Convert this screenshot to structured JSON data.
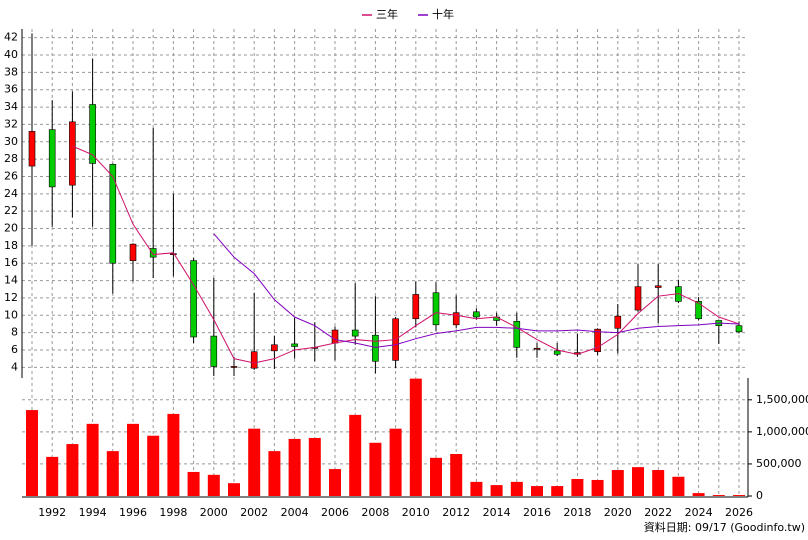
{
  "chart_data": {
    "type": "candlestick",
    "categories": [
      null,
      "1992",
      null,
      "1994",
      null,
      "1996",
      null,
      "1998",
      null,
      "2000",
      null,
      "2002",
      null,
      "2004",
      null,
      "2006",
      null,
      "2008",
      null,
      "2010",
      null,
      "2012",
      null,
      "2014",
      null,
      "2016",
      null,
      "2018",
      null,
      "2020",
      null,
      "2022",
      null,
      "2024",
      null,
      "2026"
    ],
    "open": [
      27.2,
      31.4,
      25.0,
      34.3,
      27.4,
      16.3,
      17.7,
      17.0,
      16.3,
      7.6,
      4.0,
      3.9,
      5.9,
      6.7,
      6.2,
      6.8,
      8.3,
      7.7,
      4.8,
      9.6,
      12.6,
      8.9,
      10.4,
      9.8,
      9.3,
      6.1,
      5.9,
      5.5,
      5.8,
      8.5,
      10.6,
      13.2,
      13.3,
      11.6,
      9.4,
      8.8
    ],
    "high": [
      42.5,
      34.8,
      35.8,
      39.6,
      27.5,
      18.3,
      31.6,
      24.0,
      16.6,
      14.3,
      5.2,
      12.6,
      7.6,
      9.7,
      9.2,
      8.7,
      13.7,
      12.2,
      9.8,
      13.9,
      13.8,
      12.3,
      10.8,
      10.3,
      10.3,
      6.8,
      6.8,
      7.9,
      8.5,
      11.3,
      15.9,
      15.9,
      14.1,
      12.1,
      9.4,
      9.3
    ],
    "low": [
      18.0,
      20.2,
      21.3,
      20.2,
      12.5,
      13.9,
      14.3,
      14.5,
      6.8,
      3.0,
      3.0,
      3.7,
      3.8,
      5.0,
      4.7,
      4.8,
      6.6,
      3.3,
      3.9,
      8.6,
      8.2,
      8.5,
      9.5,
      8.8,
      5.1,
      5.1,
      5.3,
      5.2,
      5.4,
      5.6,
      10.4,
      9.1,
      11.4,
      9.4,
      6.7,
      7.9
    ],
    "close": [
      31.2,
      24.8,
      32.3,
      27.5,
      16.0,
      18.2,
      16.7,
      17.1,
      7.5,
      4.1,
      4.1,
      5.8,
      6.6,
      6.4,
      6.3,
      8.3,
      7.6,
      4.7,
      9.6,
      12.4,
      8.9,
      10.3,
      9.8,
      9.4,
      6.3,
      6.2,
      5.5,
      5.7,
      8.4,
      9.9,
      13.3,
      13.4,
      11.6,
      9.6,
      8.8,
      8.1
    ],
    "up_color": "#ff0000",
    "down_color": "#00cc00",
    "series": [
      {
        "name": "三年",
        "color": "#d0106a",
        "values": [
          null,
          null,
          29.5,
          28.5,
          26.0,
          20.5,
          17.0,
          17.2,
          13.5,
          9.5,
          5.0,
          4.5,
          5.0,
          6.0,
          6.3,
          6.8,
          7.2,
          7.0,
          7.2,
          8.8,
          10.3,
          10.0,
          9.6,
          9.8,
          8.6,
          7.2,
          6.0,
          5.5,
          6.3,
          7.8,
          10.2,
          12.2,
          12.5,
          11.4,
          9.8,
          9.0
        ]
      },
      {
        "name": "十年",
        "color": "#8000c0",
        "values": [
          null,
          null,
          null,
          null,
          null,
          null,
          null,
          null,
          null,
          19.4,
          16.7,
          14.8,
          11.8,
          9.8,
          8.8,
          7.2,
          6.8,
          6.3,
          6.6,
          7.3,
          7.9,
          8.2,
          8.6,
          8.6,
          8.5,
          8.2,
          8.2,
          8.3,
          8.1,
          8.0,
          8.5,
          8.7,
          8.8,
          8.9,
          9.1,
          9.0
        ]
      }
    ],
    "ylim": [
      3,
      43
    ],
    "yticks": [
      4,
      6,
      8,
      10,
      12,
      14,
      16,
      18,
      20,
      22,
      24,
      26,
      28,
      30,
      32,
      34,
      36,
      38,
      40,
      42
    ],
    "grid": true,
    "volume": {
      "color": "#ff0000",
      "values": [
        1340000,
        610000,
        810000,
        1125000,
        700000,
        1125000,
        940000,
        1280000,
        375000,
        330000,
        200000,
        1050000,
        700000,
        890000,
        905000,
        420000,
        1265000,
        830000,
        1050000,
        1830000,
        595000,
        655000,
        220000,
        170000,
        220000,
        155000,
        155000,
        265000,
        250000,
        405000,
        450000,
        405000,
        300000,
        45000,
        15000,
        15000
      ],
      "ylim": [
        0,
        1840000
      ],
      "yticks": [
        0,
        {
          "value": 500000,
          "label": "500,000"
        },
        {
          "value": 1000000,
          "label": "1,000,000"
        },
        {
          "value": 1500000,
          "label": "1,500,000"
        }
      ]
    },
    "footer": "資料日期: 09/17 (Goodinfo.tw)"
  }
}
